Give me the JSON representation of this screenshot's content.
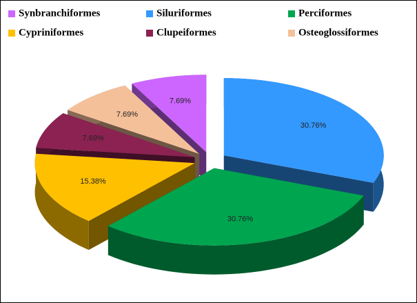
{
  "chart_data": {
    "type": "pie",
    "categories": [
      "Synbranchiformes",
      "Siluriformes",
      "Perciformes",
      "Cypriniformes",
      "Clupeiformes",
      "Osteoglossiformes"
    ],
    "values": [
      7.69,
      30.76,
      30.76,
      15.38,
      7.69,
      7.69
    ],
    "value_labels": [
      "7.69%",
      "30.76%",
      "30.76%",
      "15.38%",
      "7.69%",
      "7.69%"
    ],
    "colors": [
      "#cc66ff",
      "#3399ff",
      "#00a550",
      "#ffc000",
      "#8b2252",
      "#f4c09a"
    ],
    "legend": "top"
  }
}
